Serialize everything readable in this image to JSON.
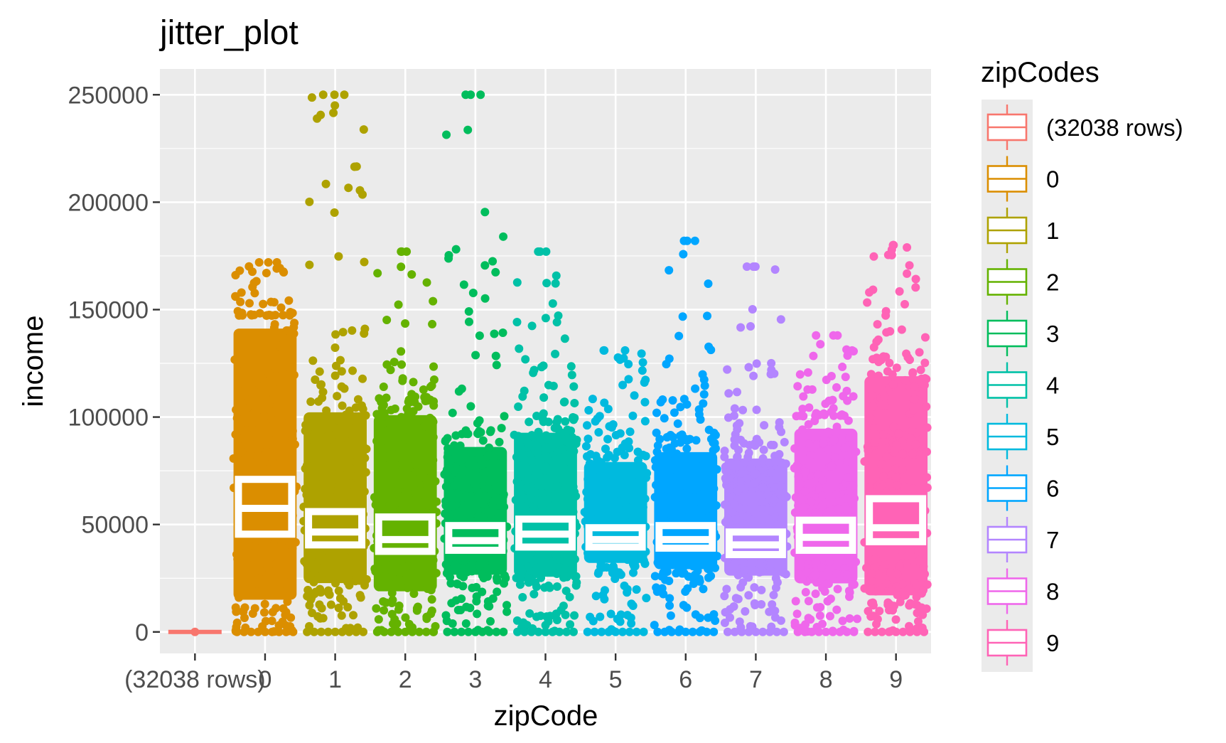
{
  "chart_data": {
    "type": "boxplot",
    "title": "jitter_plot",
    "xlabel": "zipCode",
    "ylabel": "income",
    "ylim": [
      -10000,
      262000
    ],
    "yticks": [
      0,
      50000,
      100000,
      150000,
      200000,
      250000
    ],
    "ytick_labels": [
      "0",
      "50000",
      "100000",
      "150000",
      "200000",
      "250000"
    ],
    "grid": true,
    "categories": [
      "(32038 rows)",
      "0",
      "1",
      "2",
      "3",
      "4",
      "5",
      "6",
      "7",
      "8",
      "9"
    ],
    "colors": [
      "#F8766D",
      "#DB8E00",
      "#AEA200",
      "#64B200",
      "#00BD5C",
      "#00C1A7",
      "#00BADE",
      "#00A6FF",
      "#B385FF",
      "#EF67EB",
      "#FF63B6"
    ],
    "boxes": [
      {
        "category": "(32038 rows)",
        "q1": 0,
        "median": 0,
        "q3": 0
      },
      {
        "category": "0",
        "q1": 45500,
        "median": 57500,
        "q3": 71000
      },
      {
        "category": "1",
        "q1": 40500,
        "median": 46500,
        "q3": 56000
      },
      {
        "category": "2",
        "q1": 37500,
        "median": 43000,
        "q3": 53500
      },
      {
        "category": "3",
        "q1": 38000,
        "median": 42500,
        "q3": 49500
      },
      {
        "category": "4",
        "q1": 39500,
        "median": 45500,
        "q3": 52500
      },
      {
        "category": "5",
        "q1": 39500,
        "median": 43000,
        "q3": 48500
      },
      {
        "category": "6",
        "q1": 39000,
        "median": 43000,
        "q3": 49500
      },
      {
        "category": "7",
        "q1": 36000,
        "median": 40500,
        "q3": 46500
      },
      {
        "category": "8",
        "q1": 38000,
        "median": 44000,
        "q3": 52000
      },
      {
        "category": "9",
        "q1": 42000,
        "median": 48500,
        "q3": 62000
      }
    ],
    "jitter_ranges": [
      {
        "category": "(32038 rows)",
        "min": 0,
        "max": 0
      },
      {
        "category": "0",
        "min": 0,
        "max": 172000
      },
      {
        "category": "1",
        "min": 0,
        "max": 250000
      },
      {
        "category": "2",
        "min": 0,
        "max": 177000
      },
      {
        "category": "3",
        "min": 0,
        "max": 250000
      },
      {
        "category": "4",
        "min": 0,
        "max": 177000
      },
      {
        "category": "5",
        "min": 0,
        "max": 131000
      },
      {
        "category": "6",
        "min": 0,
        "max": 182000
      },
      {
        "category": "7",
        "min": 0,
        "max": 170000
      },
      {
        "category": "8",
        "min": 0,
        "max": 138000
      },
      {
        "category": "9",
        "min": 0,
        "max": 180000
      }
    ],
    "legend": {
      "title": "zipCodes",
      "position": "right",
      "entries": [
        "(32038 rows)",
        "0",
        "1",
        "2",
        "3",
        "4",
        "5",
        "6",
        "7",
        "8",
        "9"
      ]
    }
  },
  "x_tick_labels": [
    "(32038 rows)",
    "0",
    "1",
    "2",
    "3",
    "4",
    "5",
    "6",
    "7",
    "8",
    "9"
  ]
}
